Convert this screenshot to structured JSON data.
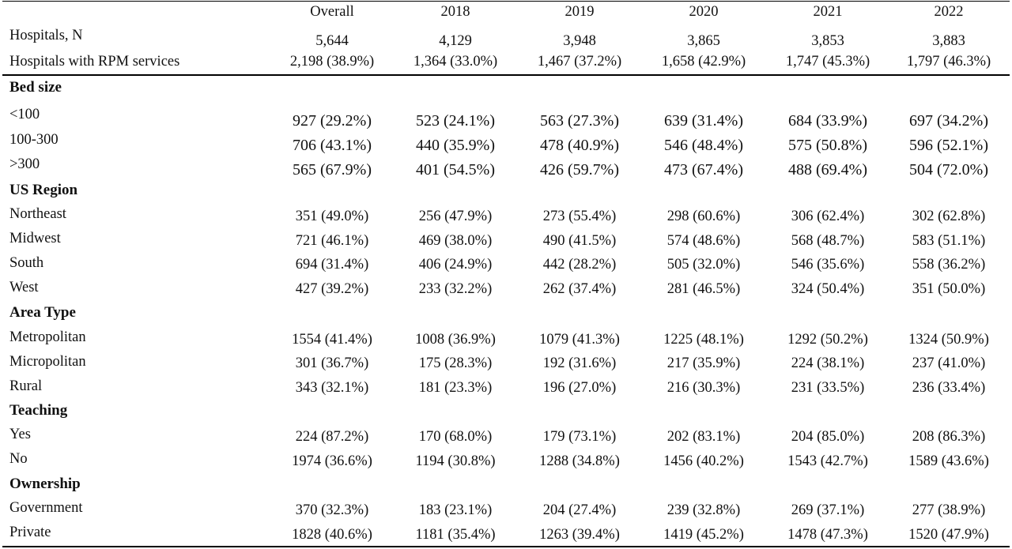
{
  "columns": [
    "Overall",
    "2018",
    "2019",
    "2020",
    "2021",
    "2022"
  ],
  "hospitals_row": {
    "label": "Hospitals, N",
    "values": [
      "5,644",
      "4,129",
      "3,948",
      "3,865",
      "3,853",
      "3,883"
    ]
  },
  "rpm_row": {
    "label": "Hospitals with RPM services",
    "values": [
      "2,198 (38.9%)",
      "1,364 (33.0%)",
      "1,467 (37.2%)",
      "1,658 (42.9%)",
      "1,747 (45.3%)",
      "1,797 (46.3%)"
    ]
  },
  "sections": [
    {
      "title": "Bed size",
      "rows": [
        {
          "label": "<100",
          "values": [
            "927 (29.2%)",
            "523 (24.1%)",
            "563 (27.3%)",
            "639 (31.4%)",
            "684 (33.9%)",
            "697 (34.2%)"
          ]
        },
        {
          "label": "100-300",
          "values": [
            "706 (43.1%)",
            "440 (35.9%)",
            "478 (40.9%)",
            "546 (48.4%)",
            "575 (50.8%)",
            "596 (52.1%)"
          ]
        },
        {
          "label": ">300",
          "values": [
            "565 (67.9%)",
            "401 (54.5%)",
            "426 (59.7%)",
            "473 (67.4%)",
            "488 (69.4%)",
            "504 (72.0%)"
          ]
        }
      ]
    },
    {
      "title": "US Region",
      "rows": [
        {
          "label": "Northeast",
          "values": [
            "351 (49.0%)",
            "256 (47.9%)",
            "273 (55.4%)",
            "298 (60.6%)",
            "306 (62.4%)",
            "302 (62.8%)"
          ]
        },
        {
          "label": "Midwest",
          "values": [
            "721 (46.1%)",
            "469 (38.0%)",
            "490 (41.5%)",
            "574 (48.6%)",
            "568 (48.7%)",
            "583 (51.1%)"
          ]
        },
        {
          "label": "South",
          "values": [
            "694 (31.4%)",
            "406 (24.9%)",
            "442 (28.2%)",
            "505 (32.0%)",
            "546 (35.6%)",
            "558 (36.2%)"
          ]
        },
        {
          "label": "West",
          "values": [
            "427 (39.2%)",
            "233 (32.2%)",
            "262 (37.4%)",
            "281 (46.5%)",
            "324 (50.4%)",
            "351 (50.0%)"
          ]
        }
      ]
    },
    {
      "title": "Area Type",
      "rows": [
        {
          "label": "Metropolitan",
          "values": [
            "1554 (41.4%)",
            "1008 (36.9%)",
            "1079 (41.3%)",
            "1225 (48.1%)",
            "1292 (50.2%)",
            "1324 (50.9%)"
          ]
        },
        {
          "label": "Micropolitan",
          "values": [
            "301 (36.7%)",
            "175 (28.3%)",
            "192 (31.6%)",
            "217 (35.9%)",
            "224 (38.1%)",
            "237 (41.0%)"
          ]
        },
        {
          "label": "Rural",
          "values": [
            "343 (32.1%)",
            "181 (23.3%)",
            "196 (27.0%)",
            "216 (30.3%)",
            "231 (33.5%)",
            "236 (33.4%)"
          ]
        }
      ]
    },
    {
      "title": "Teaching",
      "rows": [
        {
          "label": "Yes",
          "values": [
            "224 (87.2%)",
            "170 (68.0%)",
            "179 (73.1%)",
            "202 (83.1%)",
            "204 (85.0%)",
            "208 (86.3%)"
          ]
        },
        {
          "label": "No",
          "values": [
            "1974 (36.6%)",
            "1194 (30.8%)",
            "1288 (34.8%)",
            "1456 (40.2%)",
            "1543 (42.7%)",
            "1589 (43.6%)"
          ]
        }
      ]
    },
    {
      "title": "Ownership",
      "rows": [
        {
          "label": "Government",
          "values": [
            "370 (32.3%)",
            "183 (23.1%)",
            "204 (27.4%)",
            "239 (32.8%)",
            "269 (37.1%)",
            "277 (38.9%)"
          ]
        },
        {
          "label": "Private",
          "values": [
            "1828 (40.6%)",
            "1181 (35.4%)",
            "1263 (39.4%)",
            "1419 (45.2%)",
            "1478 (47.3%)",
            "1520 (47.9%)"
          ]
        }
      ]
    }
  ]
}
